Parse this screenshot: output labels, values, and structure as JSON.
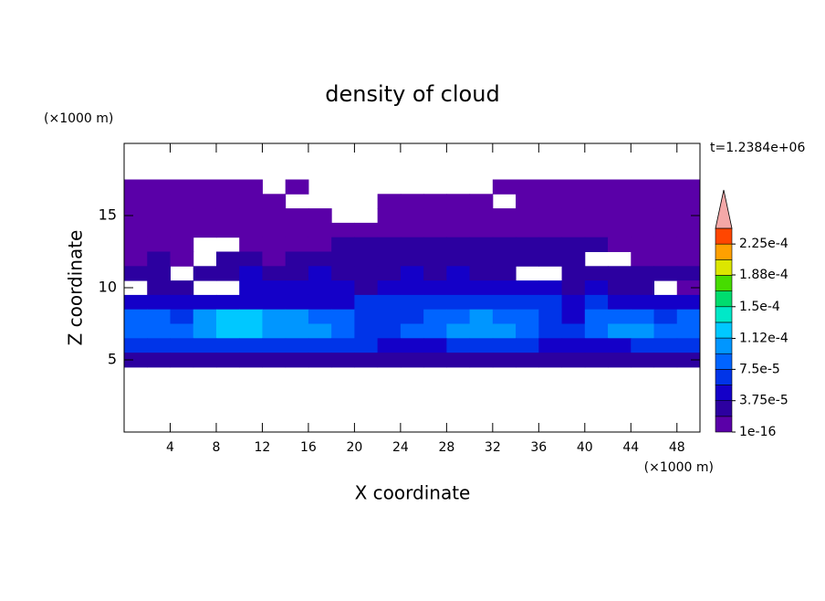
{
  "chart_data": {
    "type": "heatmap",
    "title": "density of cloud",
    "xlabel": "X coordinate",
    "ylabel": "Z coordinate",
    "x_unit": "(×1000 m)",
    "y_unit": "(×1000 m)",
    "annotation": "t=1.2384e+06",
    "xlim": [
      0,
      50
    ],
    "ylim": [
      0,
      20
    ],
    "xticks": [
      4,
      8,
      12,
      16,
      20,
      24,
      28,
      32,
      36,
      40,
      44,
      48
    ],
    "yticks": [
      5,
      10,
      15
    ],
    "x": [
      1,
      3,
      5,
      7,
      9,
      11,
      13,
      15,
      17,
      19,
      21,
      23,
      25,
      27,
      29,
      31,
      33,
      35,
      37,
      39,
      41,
      43,
      45,
      47,
      49
    ],
    "y": [
      17,
      16,
      15,
      14,
      13,
      12,
      11,
      10,
      9,
      8,
      7,
      6,
      5
    ],
    "z": [
      [
        5e-06,
        5e-06,
        5e-06,
        5e-06,
        5e-06,
        5e-06,
        null,
        5e-06,
        null,
        null,
        null,
        null,
        null,
        null,
        null,
        null,
        5e-06,
        5e-06,
        5e-06,
        5e-06,
        5e-06,
        5e-06,
        5e-06,
        5e-06,
        5e-06
      ],
      [
        5e-06,
        5e-06,
        5e-06,
        5e-06,
        5e-06,
        5e-06,
        5e-06,
        null,
        null,
        null,
        null,
        5e-06,
        5e-06,
        5e-06,
        5e-06,
        5e-06,
        null,
        5e-06,
        5e-06,
        5e-06,
        5e-06,
        5e-06,
        5e-06,
        5e-06,
        5e-06
      ],
      [
        5e-06,
        5e-06,
        5e-06,
        5e-06,
        5e-06,
        5e-06,
        5e-06,
        5e-06,
        5e-06,
        null,
        null,
        5e-06,
        5e-06,
        5e-06,
        5e-06,
        5e-06,
        5e-06,
        5e-06,
        5e-06,
        5e-06,
        5e-06,
        5e-06,
        5e-06,
        5e-06,
        5e-06
      ],
      [
        5e-06,
        5e-06,
        5e-06,
        5e-06,
        5e-06,
        5e-06,
        5e-06,
        5e-06,
        5e-06,
        5e-06,
        5e-06,
        5e-06,
        5e-06,
        5e-06,
        5e-06,
        5e-06,
        5e-06,
        5e-06,
        5e-06,
        5e-06,
        5e-06,
        5e-06,
        5e-06,
        5e-06,
        5e-06
      ],
      [
        5e-06,
        5e-06,
        5e-06,
        null,
        null,
        5e-06,
        5e-06,
        5e-06,
        5e-06,
        2.8e-05,
        2.8e-05,
        2.8e-05,
        2.8e-05,
        2.8e-05,
        2.8e-05,
        2.8e-05,
        2.8e-05,
        2.8e-05,
        2.8e-05,
        2.8e-05,
        2.8e-05,
        5e-06,
        5e-06,
        5e-06,
        5e-06
      ],
      [
        5e-06,
        2.8e-05,
        5e-06,
        null,
        2.8e-05,
        2.8e-05,
        5e-06,
        2.8e-05,
        2.8e-05,
        2.8e-05,
        2.8e-05,
        2.8e-05,
        2.8e-05,
        2.8e-05,
        2.8e-05,
        2.8e-05,
        2.8e-05,
        2.8e-05,
        2.8e-05,
        2.8e-05,
        null,
        null,
        5e-06,
        5e-06,
        5e-06
      ],
      [
        2.8e-05,
        2.8e-05,
        null,
        2.8e-05,
        2.8e-05,
        4.7e-05,
        2.8e-05,
        2.8e-05,
        4.7e-05,
        2.8e-05,
        2.8e-05,
        2.8e-05,
        4.7e-05,
        2.8e-05,
        4.7e-05,
        2.8e-05,
        2.8e-05,
        null,
        null,
        2.8e-05,
        2.8e-05,
        2.8e-05,
        2.8e-05,
        2.8e-05,
        2.8e-05
      ],
      [
        null,
        2.8e-05,
        2.8e-05,
        null,
        null,
        4.7e-05,
        4.7e-05,
        4.7e-05,
        4.7e-05,
        4.7e-05,
        2.8e-05,
        4.7e-05,
        4.7e-05,
        4.7e-05,
        4.7e-05,
        4.7e-05,
        4.7e-05,
        4.7e-05,
        4.7e-05,
        2.8e-05,
        4.7e-05,
        2.8e-05,
        2.8e-05,
        null,
        5e-06
      ],
      [
        4.7e-05,
        4.7e-05,
        4.7e-05,
        4.7e-05,
        4.7e-05,
        4.7e-05,
        4.7e-05,
        4.7e-05,
        4.7e-05,
        4.7e-05,
        6.6e-05,
        6.6e-05,
        6.6e-05,
        6.6e-05,
        6.6e-05,
        6.6e-05,
        6.6e-05,
        6.6e-05,
        6.6e-05,
        4.7e-05,
        6.6e-05,
        4.7e-05,
        4.7e-05,
        4.7e-05,
        4.7e-05
      ],
      [
        8.4e-05,
        8.4e-05,
        6.6e-05,
        0.000103,
        0.000122,
        0.000122,
        0.000103,
        0.000103,
        8.4e-05,
        8.4e-05,
        6.6e-05,
        6.6e-05,
        6.6e-05,
        8.4e-05,
        8.4e-05,
        0.000103,
        8.4e-05,
        8.4e-05,
        6.6e-05,
        4.7e-05,
        8.4e-05,
        8.4e-05,
        8.4e-05,
        6.6e-05,
        8.4e-05
      ],
      [
        8.4e-05,
        8.4e-05,
        8.4e-05,
        0.000103,
        0.000122,
        0.000122,
        0.000103,
        0.000103,
        0.000103,
        8.4e-05,
        6.6e-05,
        6.6e-05,
        8.4e-05,
        8.4e-05,
        0.000103,
        0.000103,
        0.000103,
        8.4e-05,
        6.6e-05,
        6.6e-05,
        8.4e-05,
        0.000103,
        0.000103,
        8.4e-05,
        8.4e-05
      ],
      [
        6.6e-05,
        6.6e-05,
        6.6e-05,
        6.6e-05,
        6.6e-05,
        6.6e-05,
        6.6e-05,
        6.6e-05,
        6.6e-05,
        6.6e-05,
        6.6e-05,
        4.7e-05,
        4.7e-05,
        4.7e-05,
        6.6e-05,
        6.6e-05,
        6.6e-05,
        6.6e-05,
        4.7e-05,
        4.7e-05,
        4.7e-05,
        4.7e-05,
        6.6e-05,
        6.6e-05,
        6.6e-05
      ],
      [
        2.8e-05,
        2.8e-05,
        2.8e-05,
        2.8e-05,
        2.8e-05,
        2.8e-05,
        2.8e-05,
        2.8e-05,
        2.8e-05,
        2.8e-05,
        2.8e-05,
        2.8e-05,
        2.8e-05,
        2.8e-05,
        2.8e-05,
        2.8e-05,
        2.8e-05,
        2.8e-05,
        2.8e-05,
        2.8e-05,
        2.8e-05,
        2.8e-05,
        2.8e-05,
        2.8e-05,
        2.8e-05
      ]
    ],
    "clim": [
      1e-16,
      0.00024375
    ],
    "colors": [
      "#5a00a8",
      "#2c00a0",
      "#1400c8",
      "#0034e8",
      "#0064ff",
      "#0096ff",
      "#00c8ff",
      "#00e8c8",
      "#00dc6e",
      "#46dc00",
      "#dce600",
      "#ffa000",
      "#ff4600"
    ],
    "over_color": "#f4a8a8",
    "colorbar_ticks": [
      {
        "value": 1e-16,
        "label": "1e-16"
      },
      {
        "value": 3.75e-05,
        "label": "3.75e-5"
      },
      {
        "value": 7.5e-05,
        "label": "7.5e-5"
      },
      {
        "value": 0.000112,
        "label": "1.12e-4"
      },
      {
        "value": 0.00015,
        "label": "1.5e-4"
      },
      {
        "value": 0.000188,
        "label": "1.88e-4"
      },
      {
        "value": 0.000225,
        "label": "2.25e-4"
      }
    ]
  }
}
